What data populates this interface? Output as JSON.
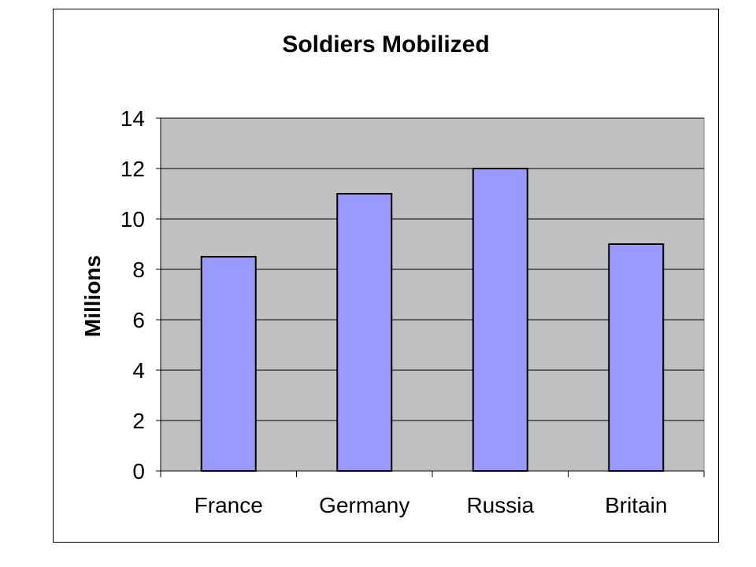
{
  "chart_data": {
    "type": "bar",
    "title": "Soldiers Mobilized",
    "xlabel": "",
    "ylabel": "Millions",
    "categories": [
      "France",
      "Germany",
      "Russia",
      "Britain"
    ],
    "values": [
      8.5,
      11,
      12,
      9
    ],
    "ylim": [
      0,
      14
    ],
    "yticks": [
      0,
      2,
      4,
      6,
      8,
      10,
      12,
      14
    ],
    "grid": true,
    "legend": "none",
    "colors": {
      "bar_fill": "#9999ff",
      "bar_stroke": "#000000",
      "plot_background": "#c0c0c0",
      "gridline": "#000000"
    }
  }
}
